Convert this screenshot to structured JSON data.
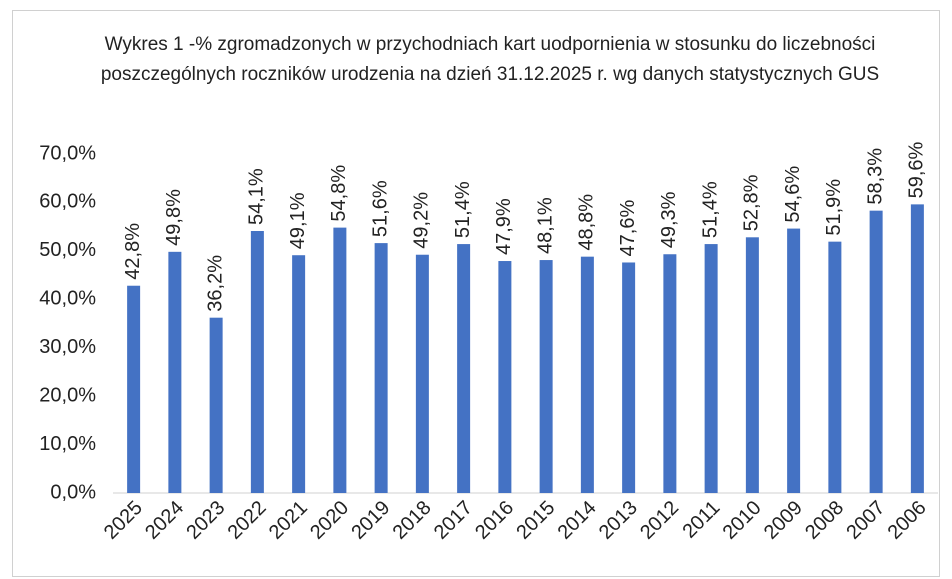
{
  "chart_data": {
    "type": "bar",
    "title": "Wykres 1 -% zgromadzonych w przychodniach kart uodpornienia w stosunku do liczebności poszczególnych roczników urodzenia na dzień 31.12.2025 r. wg danych statystycznych GUS",
    "categories": [
      "2025",
      "2024",
      "2023",
      "2022",
      "2021",
      "2020",
      "2019",
      "2018",
      "2017",
      "2016",
      "2015",
      "2014",
      "2013",
      "2012",
      "2011",
      "2010",
      "2009",
      "2008",
      "2007",
      "2006"
    ],
    "values": [
      42.8,
      49.8,
      36.2,
      54.1,
      49.1,
      54.8,
      51.6,
      49.2,
      51.4,
      47.9,
      48.1,
      48.8,
      47.6,
      49.3,
      51.4,
      52.8,
      54.6,
      51.9,
      58.3,
      59.6
    ],
    "value_labels": [
      "42,8%",
      "49,8%",
      "36,2%",
      "54,1%",
      "49,1%",
      "54,8%",
      "51,6%",
      "49,2%",
      "51,4%",
      "47,9%",
      "48,1%",
      "48,8%",
      "47,6%",
      "49,3%",
      "51,4%",
      "52,8%",
      "54,6%",
      "51,9%",
      "58,3%",
      "59,6%"
    ],
    "color": "#4472c4",
    "ylim": [
      0,
      70
    ],
    "yticks": [
      {
        "value": 0,
        "label": "0,0%"
      },
      {
        "value": 10,
        "label": "10,0%"
      },
      {
        "value": 20,
        "label": "20,0%"
      },
      {
        "value": 30,
        "label": "30,0%"
      },
      {
        "value": 40,
        "label": "40,0%"
      },
      {
        "value": 50,
        "label": "50,0%"
      },
      {
        "value": 60,
        "label": "60,0%"
      },
      {
        "value": 70,
        "label": "70,0%"
      }
    ],
    "grid": false
  }
}
